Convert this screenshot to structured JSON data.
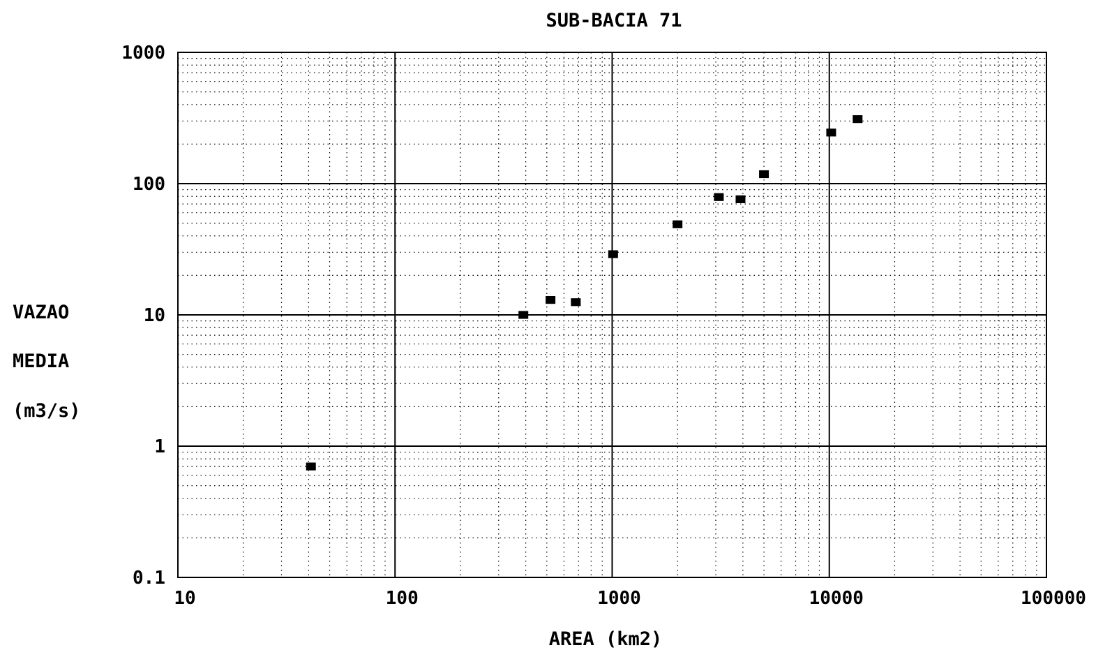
{
  "chart_data": {
    "type": "scatter",
    "title": "SUB-BACIA 71",
    "xlabel": "AREA (km2)",
    "ylabel_lines": [
      "VAZAO",
      "MEDIA",
      "(m3/s)"
    ],
    "x_scale": "log",
    "y_scale": "log",
    "xlim": [
      10,
      100000
    ],
    "ylim": [
      0.1,
      1000
    ],
    "x_ticks": [
      {
        "value": 10,
        "label": "10"
      },
      {
        "value": 100,
        "label": "100"
      },
      {
        "value": 1000,
        "label": "1000"
      },
      {
        "value": 10000,
        "label": "10000"
      },
      {
        "value": 100000,
        "label": "100000"
      }
    ],
    "y_ticks": [
      {
        "value": 1000,
        "label": "1000"
      },
      {
        "value": 100,
        "label": "100"
      },
      {
        "value": 10,
        "label": "10"
      },
      {
        "value": 1,
        "label": "1"
      },
      {
        "value": 0.1,
        "label": "0.1"
      }
    ],
    "grid": true,
    "legend": "none",
    "marker": "square",
    "color": "#000000",
    "points": [
      {
        "x": 41,
        "y": 0.7
      },
      {
        "x": 390,
        "y": 10
      },
      {
        "x": 520,
        "y": 13
      },
      {
        "x": 680,
        "y": 12.5
      },
      {
        "x": 1010,
        "y": 29
      },
      {
        "x": 2000,
        "y": 49
      },
      {
        "x": 3100,
        "y": 79
      },
      {
        "x": 3900,
        "y": 76
      },
      {
        "x": 5000,
        "y": 118
      },
      {
        "x": 10200,
        "y": 245
      },
      {
        "x": 13500,
        "y": 310
      }
    ]
  }
}
